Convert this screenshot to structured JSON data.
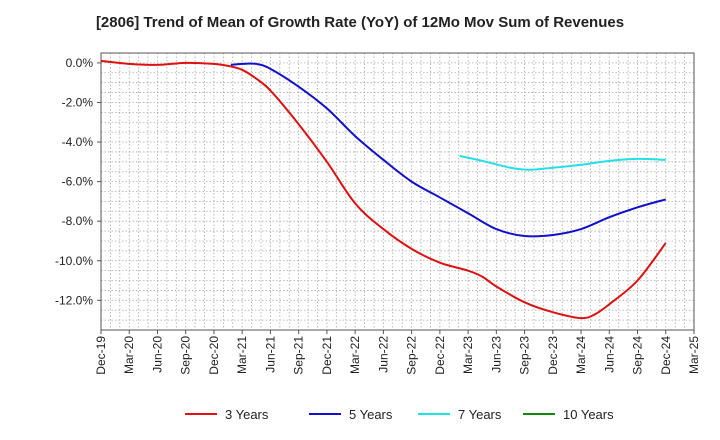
{
  "chart_data": {
    "type": "line",
    "title": "[2806]  Trend of Mean of Growth Rate (YoY) of 12Mo Mov Sum of Revenues",
    "xlabel": "",
    "ylabel": "",
    "ylim": [
      -13.5,
      0.5
    ],
    "y_ticks": [
      0,
      -2,
      -4,
      -6,
      -8,
      -10,
      -12
    ],
    "y_tick_labels": [
      "0.0%",
      "-2.0%",
      "-4.0%",
      "-6.0%",
      "-8.0%",
      "-10.0%",
      "-12.0%"
    ],
    "x_tick_labels": [
      "Dec-19",
      "Mar-20",
      "Jun-20",
      "Sep-20",
      "Dec-20",
      "Mar-21",
      "Jun-21",
      "Sep-21",
      "Dec-21",
      "Mar-22",
      "Jun-22",
      "Sep-22",
      "Dec-22",
      "Mar-23",
      "Jun-23",
      "Sep-23",
      "Dec-23",
      "Mar-24",
      "Jun-24",
      "Sep-24",
      "Dec-24",
      "Mar-25"
    ],
    "grid": true,
    "legend_position": "bottom",
    "series": [
      {
        "name": "3 Years",
        "color": "#dd1111",
        "points": [
          [
            0,
            0.1
          ],
          [
            1,
            -0.05
          ],
          [
            2,
            -0.1
          ],
          [
            3,
            0.0
          ],
          [
            4,
            -0.05
          ],
          [
            4.5,
            -0.15
          ],
          [
            5,
            -0.35
          ],
          [
            5.5,
            -0.8
          ],
          [
            6,
            -1.4
          ],
          [
            7,
            -3.1
          ],
          [
            8,
            -5.0
          ],
          [
            9,
            -7.1
          ],
          [
            10,
            -8.4
          ],
          [
            11,
            -9.4
          ],
          [
            12,
            -10.1
          ],
          [
            13,
            -10.5
          ],
          [
            13.5,
            -10.8
          ],
          [
            14,
            -11.3
          ],
          [
            15,
            -12.1
          ],
          [
            16,
            -12.6
          ],
          [
            17,
            -12.9
          ],
          [
            17.5,
            -12.7
          ],
          [
            18,
            -12.2
          ],
          [
            19,
            -11.0
          ],
          [
            20,
            -9.1
          ]
        ]
      },
      {
        "name": "5 Years",
        "color": "#1111cc",
        "points": [
          [
            4.6,
            -0.1
          ],
          [
            5,
            -0.05
          ],
          [
            5.5,
            -0.05
          ],
          [
            6,
            -0.3
          ],
          [
            7,
            -1.2
          ],
          [
            8,
            -2.3
          ],
          [
            9,
            -3.7
          ],
          [
            10,
            -4.9
          ],
          [
            11,
            -6.0
          ],
          [
            12,
            -6.8
          ],
          [
            13,
            -7.6
          ],
          [
            14,
            -8.4
          ],
          [
            15,
            -8.75
          ],
          [
            16,
            -8.7
          ],
          [
            17,
            -8.4
          ],
          [
            18,
            -7.8
          ],
          [
            19,
            -7.3
          ],
          [
            20,
            -6.9
          ]
        ]
      },
      {
        "name": "7 Years",
        "color": "#22e0e6",
        "points": [
          [
            12.7,
            -4.7
          ],
          [
            13.5,
            -4.95
          ],
          [
            14.5,
            -5.3
          ],
          [
            15.2,
            -5.4
          ],
          [
            16,
            -5.3
          ],
          [
            17,
            -5.15
          ],
          [
            18,
            -4.95
          ],
          [
            19,
            -4.85
          ],
          [
            20,
            -4.9
          ]
        ]
      },
      {
        "name": "10 Years",
        "color": "#118811",
        "points": []
      }
    ]
  }
}
